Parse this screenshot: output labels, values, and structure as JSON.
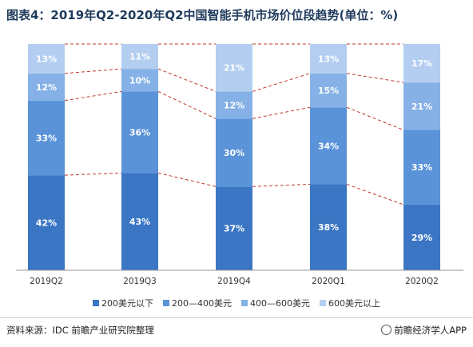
{
  "title": "图表4：2019年Q2-2020年Q2中国智能手机市场价位段趋势(单位：%)",
  "source": "资料来源：IDC 前瞻产业研究院整理",
  "brand": "前瞻经济学人APP",
  "colors": {
    "s200": "#3a76c4",
    "s200_400": "#5b93d9",
    "s400_600": "#86b1e6",
    "s600": "#b3cef0",
    "connector": "#c0392b"
  },
  "chart_data": {
    "type": "bar",
    "stacked": true,
    "percent_stacked": true,
    "categories": [
      "2019Q2",
      "2019Q3",
      "2019Q4",
      "2020Q1",
      "2020Q2"
    ],
    "series": [
      {
        "name": "200美元以下",
        "values": [
          42,
          43,
          37,
          38,
          29
        ]
      },
      {
        "name": "200—400美元",
        "values": [
          33,
          36,
          30,
          34,
          33
        ]
      },
      {
        "name": "400—600美元",
        "values": [
          12,
          10,
          12,
          15,
          21
        ]
      },
      {
        "name": "600美元以上",
        "values": [
          13,
          11,
          21,
          13,
          17
        ]
      }
    ],
    "data_label_suffix": "%",
    "legend_position": "bottom",
    "grid": false,
    "connector_lines": "dashed red lines joining stack boundaries of adjacent bars"
  }
}
